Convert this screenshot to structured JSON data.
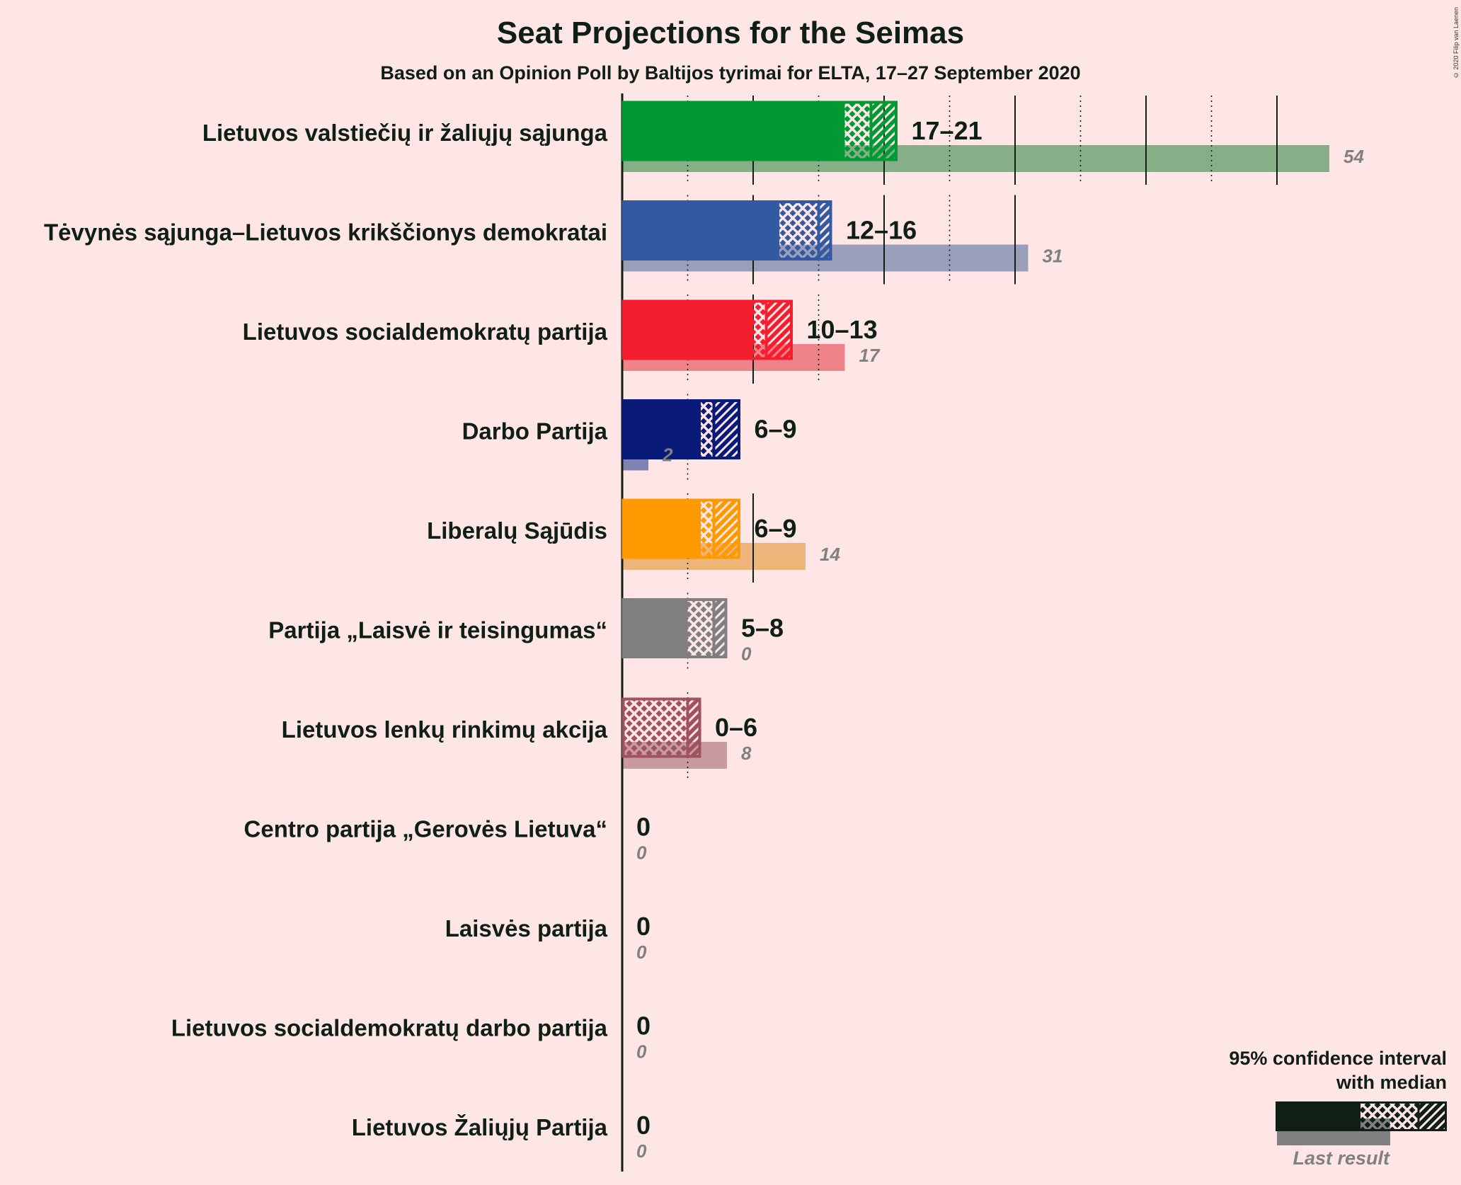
{
  "title": "Seat Projections for the Seimas",
  "subtitle": "Based on an Opinion Poll by Baltijos tyrimai for ELTA, 17–27 September 2020",
  "copyright": "© 2020 Filip van Laenen",
  "chart_data": {
    "type": "bar",
    "orientation": "horizontal",
    "title": "Seat Projections for the Seimas",
    "subtitle": "Based on an Opinion Poll by Baltijos tyrimai for ELTA, 17–27 September 2020",
    "x_range": [
      0,
      54
    ],
    "categories": [
      "Lietuvos valstiečių ir žaliųjų sąjunga",
      "Tėvynės sąjunga–Lietuvos krikščionys demokratai",
      "Lietuvos socialdemokratų partija",
      "Darbo Partija",
      "Liberalų Sąjūdis",
      "Partija „Laisvė ir teisingumas“",
      "Lietuvos lenkų rinkimų akcija",
      "Centro partija „Gerovės Lietuva“",
      "Laisvės partija",
      "Lietuvos socialdemokratų darbo partija",
      "Lietuvos Žaliųjų Partija"
    ],
    "parties": [
      {
        "name": "Lietuvos valstiečių ir žaliųjų sąjunga",
        "low": 17,
        "median": 19,
        "high": 21,
        "range_label": "17–21",
        "last": 54,
        "last_label": "54",
        "color": "#009933",
        "last_color": "#86AF87"
      },
      {
        "name": "Tėvynės sąjunga–Lietuvos krikščionys demokratai",
        "low": 12,
        "median": 15,
        "high": 16,
        "range_label": "12–16",
        "last": 31,
        "last_label": "31",
        "color": "#3359A0",
        "last_color": "#9A9EBA"
      },
      {
        "name": "Lietuvos socialdemokratų partija",
        "low": 10,
        "median": 11,
        "high": 13,
        "range_label": "10–13",
        "last": 17,
        "last_label": "17",
        "color": "#F51E2F",
        "last_color": "#EE8489"
      },
      {
        "name": "Darbo Partija",
        "low": 6,
        "median": 7,
        "high": 9,
        "range_label": "6–9",
        "last": 2,
        "last_label": "2",
        "color": "#0A1A78",
        "last_color": "#7E83B2"
      },
      {
        "name": "Liberalų Sąjūdis",
        "low": 6,
        "median": 7,
        "high": 9,
        "range_label": "6–9",
        "last": 14,
        "last_label": "14",
        "color": "#FF9900",
        "last_color": "#EDB57A"
      },
      {
        "name": "Partija „Laisvė ir teisingumas“",
        "low": 5,
        "median": 7,
        "high": 8,
        "range_label": "5–8",
        "last": 0,
        "last_label": "0",
        "color": "#7F7F7F",
        "last_color": "#BDB1B1"
      },
      {
        "name": "Lietuvos lenkų rinkimų akcija",
        "low": 0,
        "median": 5,
        "high": 6,
        "range_label": "0–6",
        "last": 8,
        "last_label": "8",
        "color": "#A0525F",
        "last_color": "#C89B9E"
      },
      {
        "name": "Centro partija „Gerovės Lietuva“",
        "low": 0,
        "median": 0,
        "high": 0,
        "range_label": "0",
        "last": 0,
        "last_label": "0",
        "color": "#555555",
        "last_color": "#BBBBBB"
      },
      {
        "name": "Laisvės partija",
        "low": 0,
        "median": 0,
        "high": 0,
        "range_label": "0",
        "last": 0,
        "last_label": "0",
        "color": "#555555",
        "last_color": "#BBBBBB"
      },
      {
        "name": "Lietuvos socialdemokratų darbo partija",
        "low": 0,
        "median": 0,
        "high": 0,
        "range_label": "0",
        "last": 0,
        "last_label": "0",
        "color": "#555555",
        "last_color": "#BBBBBB"
      },
      {
        "name": "Lietuvos Žaliųjų Partija",
        "low": 0,
        "median": 0,
        "high": 0,
        "range_label": "0",
        "last": 0,
        "last_label": "0",
        "color": "#555555",
        "last_color": "#BBBBBB"
      }
    ],
    "legend": {
      "line1": "95% confidence interval",
      "line2": "with median",
      "last_result": "Last result",
      "placement": "bottom-right"
    },
    "grid": true
  }
}
